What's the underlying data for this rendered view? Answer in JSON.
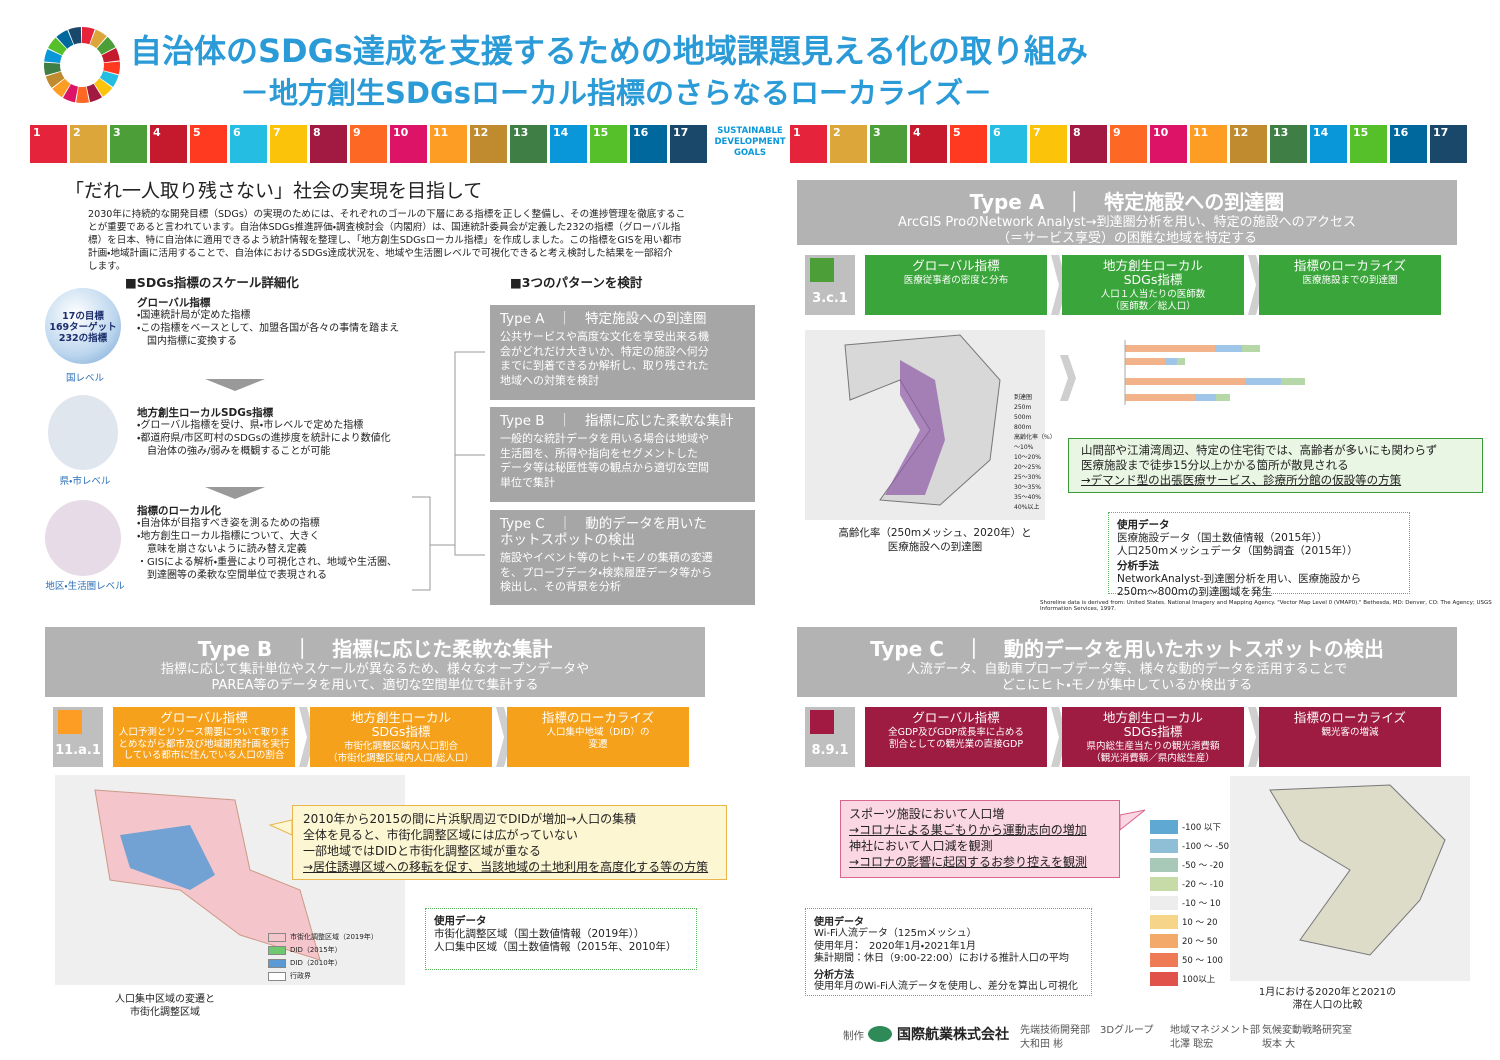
{
  "header": {
    "title": "自治体のSDGs達成を支援するための地域課題見える化の取り組み",
    "subtitle": "－地方創生SDGsローカル指標のさらなるローカライズ－"
  },
  "sdg_banner": {
    "goals": [
      1,
      2,
      3,
      4,
      5,
      6,
      7,
      8,
      9,
      10,
      11,
      12,
      13,
      14,
      15,
      16,
      17
    ],
    "logo": [
      "SUSTAINABLE",
      "DEVELOPMENT",
      "GOALS"
    ]
  },
  "intro": {
    "heading": "「だれ一人取り残さない」社会の実現を目指して",
    "body": [
      "2030年に持続的な開発目標（SDGs）の実現のためには、それぞれのゴールの下層にある指標を正しく整備し、その進捗管理を徹底するこ",
      "とが重要であると言われています。自治体SDGs推進評価・調査検討会（内閣府）は、国連統計委員会が定義した232の指標（グローバル指",
      "標）を日本、特に自治体に適用できるよう統計情報を整理し、「地方創生SDGsローカル指標」を作成しました。この指標をGISを用い都市",
      "計画・地域計画に活用することで、自治体におけるSDGs達成状況を、地域や生活圏レベルで可視化できると考え検討した結果を一部紹介",
      "します。"
    ]
  },
  "scale": {
    "heading": "■SDGs指標のスケール詳細化",
    "globe_lines": [
      "17の目標",
      "169ターゲット",
      "232の指標"
    ],
    "levels": [
      {
        "label": "国レベル",
        "title": "グローバル指標",
        "lines": [
          "・国連統計局が定めた指標",
          "・この指標をベースとして、加盟各国が各々の事情を踏まえ",
          "　国内指標に変換する"
        ]
      },
      {
        "label": "県・市レベル",
        "title": "地方創生ローカルSDGs指標",
        "lines": [
          "・グローバル指標を受け、県・市レベルで定めた指標",
          "・都道府県/市区町村のSDGsの進捗度を統計により数値化",
          "　自治体の強み/弱みを概観することが可能"
        ]
      },
      {
        "label": "地区・生活圏レベル",
        "title": "指標のローカル化",
        "lines": [
          "・自治体が目指すべき姿を測るための指標",
          "・地方創生ローカル指標について、大きく",
          "　意味を崩さないように読み替え定義",
          "・GISによる解析・重畳により可視化され、地域や生活圏、",
          "　到達圏等の柔軟な空間単位で表現される"
        ]
      }
    ]
  },
  "patterns": {
    "heading": "■3つのパターンを検討",
    "items": [
      {
        "title": [
          "Type A　｜　特定施設への到達圏"
        ],
        "lines": [
          "公共サービスや高度な文化を享受出来る機",
          "会がどれだけ大きいか、特定の施設へ何分",
          "までに到着できるか解析し、取り残された",
          "地域への対策を検討"
        ]
      },
      {
        "title": [
          "Type B　｜　指標に応じた柔軟な集計"
        ],
        "lines": [
          "一般的な統計データを用いる場合は地域や",
          "生活圏を、所得や指向をセグメントした",
          "データ等は秘匿性等の観点から適切な空間",
          "単位で集計"
        ]
      },
      {
        "title": [
          "Type C　｜　動的データを用いた",
          "ホットスポットの検出"
        ],
        "lines": [
          "施設やイベント等のヒト・モノの集積の変遷",
          "を、プローブデータ・検索履歴データ等から",
          "検出し、その背景を分析"
        ]
      }
    ]
  },
  "type_a": {
    "title": "Type A　｜　特定施設への到達圏",
    "description": [
      "ArcGIS ProのNetwork Analyst→到達圏分析を用い、特定の施設へのアクセス",
      "（＝サービス享受）の困難な地域を特定する"
    ],
    "code": "3.c.1",
    "steps": [
      {
        "title": [
          "グローバル指標"
        ],
        "lines": [
          "医療従事者の密度と分布"
        ]
      },
      {
        "title": [
          "地方創生ローカル",
          "SDGs指標"
        ],
        "lines": [
          "人口１人当たりの医師数",
          "（医師数／総人口）"
        ]
      },
      {
        "title": [
          "指標のローカライズ"
        ],
        "lines": [
          "医療施設までの到達圏"
        ]
      }
    ],
    "map_legend": [
      "到達圏",
      "250m",
      "500m",
      "800m",
      "高齢化率（%）",
      "～10%",
      "10～20%",
      "20～25%",
      "25～30%",
      "30～35%",
      "35～40%",
      "40%以上"
    ],
    "map_caption": [
      "高齢化率（250mメッシュ、2020年）と",
      "医療施設への到達圏"
    ],
    "callout": [
      "山間部や江浦湾周辺、特定の住宅街では、高齢者が多いにも関わらず",
      "医療施設まで徒歩15分以上かかる箇所が散見される",
      "→デマンド型の出張医療サービス、診療所分館の仮設等の方策"
    ],
    "used_data": {
      "heading": "使用データ",
      "lines": [
        "医療施設データ（国土数値情報（2015年））",
        "人口250mメッシュデータ（国勢調査（2015年））"
      ],
      "method_heading": "分析手法",
      "method_lines": [
        "NetworkAnalyst-到達圏分析を用い、医療施設から",
        "250m～800mの到達圏域を発生"
      ]
    },
    "source": "Shoreline data is derived from: United States. National Imagery and Mapping Agency. \"Vector Map Level 0 (VMAP0).\" Bethesda, MD: Denver, CO: The Agency; USGS Information Services, 1997."
  },
  "type_b": {
    "title": "Type B　｜　指標に応じた柔軟な集計",
    "description": [
      "指標に応じて集計単位やスケールが異なるため、様々なオープンデータや",
      "PAREA等のデータを用いて、適切な空間単位で集計する"
    ],
    "code": "11.a.1",
    "steps": [
      {
        "title": [
          "グローバル指標"
        ],
        "lines": [
          "人口予測とリソース需要について取りま",
          "とめながら都市及び地域開発計画を実行",
          "している都市に住んでいる人口の割合"
        ]
      },
      {
        "title": [
          "地方創生ローカル",
          "SDGs指標"
        ],
        "lines": [
          "市街化調整区域内人口割合",
          "（市街化調整区域内人口/総人口）"
        ]
      },
      {
        "title": [
          "指標のローカライズ"
        ],
        "lines": [
          "人口集中地域（DID）の",
          "変遷"
        ]
      }
    ],
    "callout": [
      "2010年から2015の間に片浜駅周辺でDIDが増加→人口の集積",
      "全体を見ると、市街化調整区域には広がっていない",
      "一部地域ではDIDと市街化調整区域が重なる",
      "→居住誘導区域への移転を促す、当該地域の土地利用を高度化する等の方策"
    ],
    "map_legend": [
      "市街化調整区域（2019年）",
      "DID（2015年）",
      "DID（2010年）",
      "行政界"
    ],
    "used_data": {
      "heading": "使用データ",
      "lines": [
        "市街化調整区域（国土数値情報（2019年））",
        "人口集中区域（国土数値情報（2015年、2010年）"
      ]
    },
    "map_caption": [
      "人口集中区域の変遷と",
      "市街化調整区域"
    ]
  },
  "type_c": {
    "title": "Type C　｜　動的データを用いたホットスポットの検出",
    "description": [
      "人流データ、自動車プローブデータ等、様々な動的データを活用することで",
      "どこにヒト・モノが集中しているか検出する"
    ],
    "code": "8.9.1",
    "steps": [
      {
        "title": [
          "グローバル指標"
        ],
        "lines": [
          "全GDP及びGDP成長率に占める",
          "割合としての観光業の直接GDP"
        ]
      },
      {
        "title": [
          "地方創生ローカル",
          "SDGs指標"
        ],
        "lines": [
          "県内総生産当たりの観光消費額",
          "（観光消費額／県内総生産）"
        ]
      },
      {
        "title": [
          "指標のローカライズ"
        ],
        "lines": [
          "観光客の増減"
        ]
      }
    ],
    "callout": [
      "スポーツ施設において人口増",
      "→コロナによる巣ごもりから運動志向の増加",
      "神社において人口減を観測",
      "→コロナの影響に起因するお参り控えを観測"
    ],
    "map_legend": [
      "-100 以下",
      "-100 ～ -50",
      "-50 ～ -20",
      "-20 ～ -10",
      "-10 ～ 10",
      "10 ～ 20",
      "20 ～ 50",
      "50 ～ 100",
      "100以上"
    ],
    "used_data": {
      "heading": "使用データ",
      "lines": [
        "Wi-Fi人流データ（125mメッシュ）",
        "使用年月：　2020年1月・2021年1月",
        "集計期間：休日（9:00-22:00）における推計人口の平均"
      ],
      "method_heading": "分析方法",
      "method_lines": [
        "使用年月のWi-Fi人流データを使用し、差分を算出し可視化"
      ]
    },
    "map_caption": [
      "1月における2020年と2021の",
      "滞在人口の比較"
    ]
  },
  "footer": {
    "credit": "制作",
    "company": "国際航業株式会社",
    "teams": [
      {
        "dept": "先端技術開発部　3Dグループ",
        "name": "大和田 彬"
      },
      {
        "dept": "地域マネジメント部",
        "name": "北澤 聡宏"
      },
      {
        "dept": "気候変動戦略研究室",
        "name": "坂本 大"
      }
    ]
  }
}
